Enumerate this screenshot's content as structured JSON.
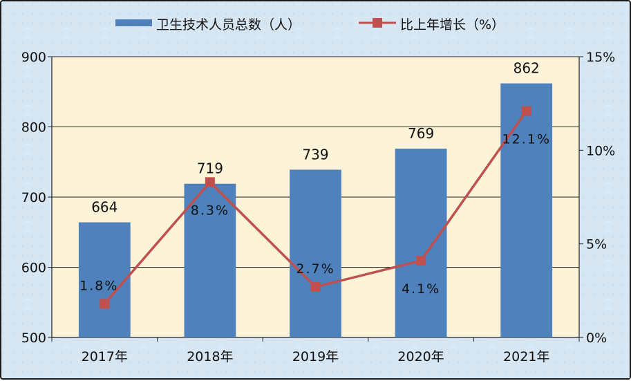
{
  "colors": {
    "bar": "#4f81bd",
    "line": "#c0504d",
    "plot_bg": "#fdf3d8",
    "frame_bg": "#d6e6f2",
    "grid": "#222222"
  },
  "chart_data": {
    "type": "bar",
    "categories": [
      "2017年",
      "2018年",
      "2019年",
      "2020年",
      "2021年"
    ],
    "series": [
      {
        "name": "卫生技术人员总数（人）",
        "type": "bar",
        "axis": "left",
        "values": [
          664,
          719,
          739,
          769,
          862
        ],
        "labels": [
          "664",
          "719",
          "739",
          "769",
          "862"
        ]
      },
      {
        "name": "比上年增长（%）",
        "type": "line",
        "axis": "right",
        "values": [
          1.8,
          8.3,
          2.7,
          4.1,
          12.1
        ],
        "labels": [
          "1.8%",
          "8.3%",
          "2.7%",
          "4.1%",
          "12.1%"
        ]
      }
    ],
    "y_left": {
      "min": 500,
      "max": 900,
      "ticks": [
        "500",
        "600",
        "700",
        "800",
        "900"
      ]
    },
    "y_right": {
      "min": 0,
      "max": 15,
      "ticks": [
        "0%",
        "5%",
        "10%",
        "15%"
      ]
    },
    "grid": true,
    "legend": "top"
  }
}
